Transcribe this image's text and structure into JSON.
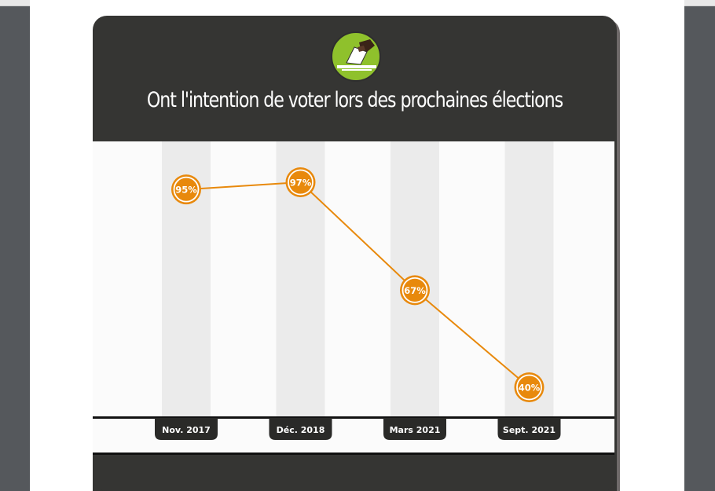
{
  "title": "Ont l'intention de voter lors des prochaines élections",
  "emblem": {
    "icon": "ballot-box-icon",
    "color": "#8fc12c"
  },
  "colors": {
    "accent": "#e8890c",
    "dark": "#353533",
    "band": "#ebebeb"
  },
  "chart_data": {
    "type": "line",
    "title": "Ont l'intention de voter lors des prochaines élections",
    "categories": [
      "Nov. 2017",
      "Déc. 2018",
      "Mars 2021",
      "Sept. 2021"
    ],
    "series": [
      {
        "values": [
          95,
          97,
          67,
          40
        ]
      }
    ],
    "data_labels": [
      "95%",
      "97%",
      "67%",
      "40%"
    ],
    "ylim": [
      40,
      97
    ],
    "grid": false
  }
}
